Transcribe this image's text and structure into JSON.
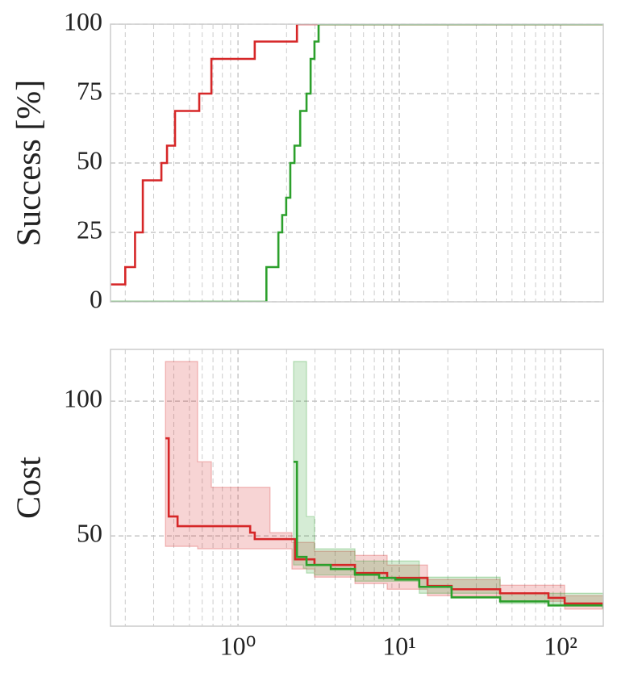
{
  "chart_data": [
    {
      "type": "line",
      "ylabel": "Success [%]",
      "xscale": "log",
      "step": "post",
      "grid": true,
      "minor_grid": true,
      "xlim": [
        0.162,
        184
      ],
      "xticks": [
        1,
        10,
        100
      ],
      "ylim": [
        0,
        100
      ],
      "yticks": [
        0,
        25,
        50,
        75,
        100
      ],
      "series": [
        {
          "color": "#d62728",
          "x": [
            0.162,
            0.2,
            0.23,
            0.257,
            0.335,
            0.363,
            0.407,
            0.575,
            0.684,
            1.27,
            2.32,
            184
          ],
          "values": [
            6.25,
            12.5,
            25,
            43.75,
            50,
            56.25,
            68.75,
            75,
            87.5,
            93.75,
            100,
            100
          ]
        },
        {
          "color": "#2ca02c",
          "x": [
            0.162,
            1.5,
            1.78,
            1.88,
            1.99,
            2.11,
            2.24,
            2.43,
            2.66,
            2.82,
            2.98,
            3.16,
            184
          ],
          "values": [
            0,
            12.5,
            25,
            31.25,
            37.5,
            50,
            56.25,
            68.75,
            75,
            87.5,
            93.75,
            100,
            100
          ]
        }
      ]
    },
    {
      "type": "line",
      "ylabel": "Cost",
      "xscale": "log",
      "step": "post",
      "grid": true,
      "minor_grid": true,
      "xlim": [
        0.162,
        184
      ],
      "xticks": [
        {
          "value": 1,
          "label": "10⁰"
        },
        {
          "value": 10,
          "label": "10¹"
        },
        {
          "value": 100,
          "label": "10²"
        }
      ],
      "ylim": [
        16.5,
        119.2
      ],
      "yticks": [
        50,
        100
      ],
      "series": [
        {
          "color": "#d62728",
          "x": [
            0.355,
            0.372,
            0.422,
            1.19,
            1.27,
            2.26,
            2.98,
            5.31,
            8.41,
            14.96,
            21.1,
            42.2,
            84.1,
            106,
            184
          ],
          "values": [
            86.2,
            57.2,
            53.6,
            51.2,
            48.8,
            41.3,
            39.2,
            36.2,
            34.4,
            31.4,
            30.2,
            28.7,
            27,
            24.9,
            24.9
          ],
          "band": {
            "x": [
              0.355,
              0.562,
              0.684,
              1.58,
              2.16,
              2.98,
              5.31,
              8.41,
              14.96,
              42.2,
              106,
              184
            ],
            "upper": [
              114.7,
              77.5,
              68,
              51.2,
              47.6,
              44.3,
              42.8,
              39.2,
              33.8,
              31.7,
              27.8,
              27.5
            ],
            "lower": [
              46.1,
              45.2,
              45.2,
              45.2,
              37.7,
              34.7,
              32.3,
              30.2,
              27.8,
              25.7,
              22.8,
              21.5
            ]
          }
        },
        {
          "color": "#2ca02c",
          "x": [
            2.21,
            2.32,
            2.66,
            3.76,
            5.31,
            7.5,
            9.44,
            13.3,
            21.1,
            42.2,
            84.1,
            184
          ],
          "values": [
            77.5,
            42.2,
            39.2,
            37.7,
            35.6,
            34.4,
            33.8,
            31.1,
            27.2,
            25.7,
            24.2,
            23
          ],
          "band": {
            "x": [
              2.21,
              2.54,
              2.66,
              2.98,
              5.31,
              13.3,
              42.2,
              184
            ],
            "upper": [
              114.7,
              114.7,
              57.2,
              45.2,
              40.7,
              34.7,
              28.7,
              24.2
            ],
            "lower": [
              39.2,
              38,
              36.2,
              35.5,
              33.2,
              28.7,
              24.9,
              20.7
            ]
          }
        }
      ]
    }
  ]
}
